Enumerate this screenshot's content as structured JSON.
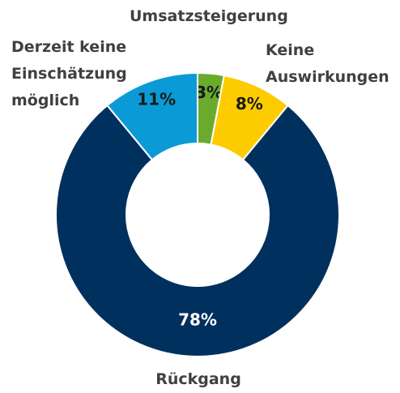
{
  "chart_data": {
    "type": "donut",
    "categories": [
      "Umsatzsteigerung",
      "Keine Auswirkungen",
      "Rückgang",
      "Derzeit keine Einschätzung möglich"
    ],
    "values": [
      3,
      8,
      78,
      11
    ],
    "value_labels": [
      "3%",
      "8%",
      "78%",
      "11%"
    ],
    "colors": [
      "#6aab2e",
      "#fccb00",
      "#00305e",
      "#0a9bd7"
    ]
  }
}
